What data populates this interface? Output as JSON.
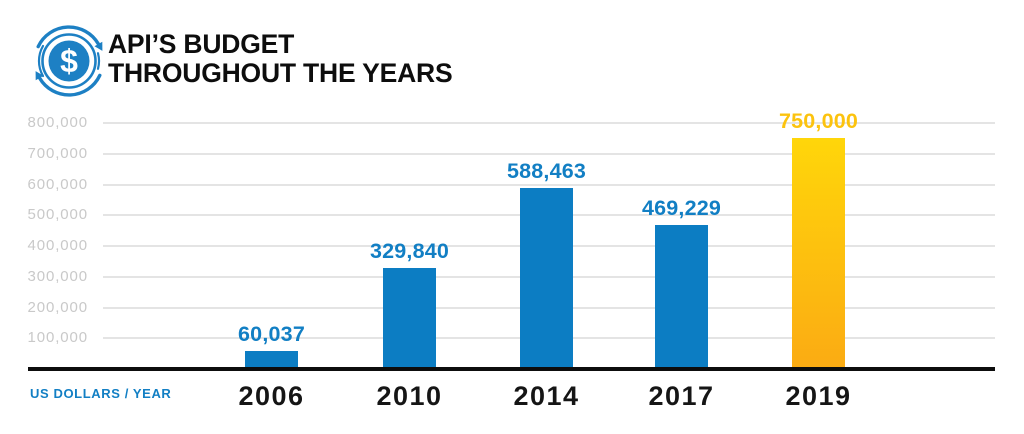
{
  "header": {
    "icon": "money-cycle-icon",
    "title_line1": "API’S BUDGET",
    "title_line2": "THROUGHOUT THE YEARS"
  },
  "chart_data": {
    "type": "bar",
    "title": "API’S BUDGET THROUGHOUT THE YEARS",
    "categories": [
      "2006",
      "2010",
      "2014",
      "2017",
      "2019"
    ],
    "values": [
      60037,
      329840,
      588463,
      469229,
      750000
    ],
    "value_labels": [
      "60,037",
      "329,840",
      "588,463",
      "469,229",
      "750,000"
    ],
    "ylabel": "US DOLLARS / YEAR",
    "ylim": [
      0,
      800000
    ],
    "yticks": [
      800000,
      700000,
      600000,
      500000,
      400000,
      300000,
      200000,
      100000
    ],
    "ytick_labels": [
      "800,000",
      "700,000",
      "600,000",
      "500,000",
      "400,000",
      "300,000",
      "200,000",
      "100,000"
    ],
    "grid": "horizontal",
    "legend": false,
    "highlight_index": 4,
    "colors": {
      "bar_blue": "#0c7dc3",
      "bar_gold_top": "#ffd60a",
      "bar_gold_bottom": "#fbab13",
      "value_label_blue": "#127fc4",
      "value_label_gold": "#fcc30e",
      "ytick_label": "#c9c9c9",
      "gridline": "#e4e4e4",
      "axis_line": "#0d0d0d",
      "year_label": "#151515",
      "icon_blue": "#1d80c4",
      "title_color": "#0d0d0d"
    }
  }
}
